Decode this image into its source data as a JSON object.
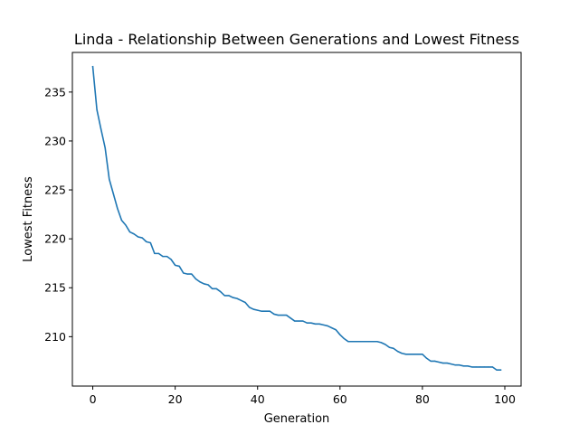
{
  "chart_data": {
    "type": "line",
    "title": "Linda - Relationship Between Generations and Lowest Fitness",
    "xlabel": "Generation",
    "ylabel": "Lowest Fitness",
    "xlim": [
      -4.95,
      103.95
    ],
    "ylim": [
      204.95,
      239.05
    ],
    "xticks": [
      0,
      20,
      40,
      60,
      80,
      100
    ],
    "yticks": [
      210,
      215,
      220,
      225,
      230,
      235
    ],
    "grid": false,
    "series": [
      {
        "color": "#1f77b4",
        "x": [
          0,
          1,
          2,
          3,
          4,
          5,
          6,
          7,
          8,
          9,
          10,
          11,
          12,
          13,
          14,
          15,
          16,
          17,
          18,
          19,
          20,
          21,
          22,
          23,
          24,
          25,
          26,
          27,
          28,
          29,
          30,
          31,
          32,
          33,
          34,
          35,
          36,
          37,
          38,
          39,
          40,
          41,
          42,
          43,
          44,
          45,
          46,
          47,
          48,
          49,
          50,
          51,
          52,
          53,
          54,
          55,
          56,
          57,
          58,
          59,
          60,
          61,
          62,
          63,
          64,
          65,
          66,
          67,
          68,
          69,
          70,
          71,
          72,
          73,
          74,
          75,
          76,
          77,
          78,
          79,
          80,
          81,
          82,
          83,
          84,
          85,
          86,
          87,
          88,
          89,
          90,
          91,
          92,
          93,
          94,
          95,
          96,
          97,
          98,
          99
        ],
        "values": [
          237.6,
          233.2,
          231.2,
          229.3,
          226.1,
          224.6,
          223.1,
          221.9,
          221.4,
          220.7,
          220.5,
          220.2,
          220.1,
          219.7,
          219.6,
          218.5,
          218.5,
          218.2,
          218.2,
          217.9,
          217.3,
          217.2,
          216.5,
          216.4,
          216.4,
          215.9,
          215.6,
          215.4,
          215.3,
          214.9,
          214.9,
          214.6,
          214.2,
          214.2,
          214.0,
          213.9,
          213.7,
          213.5,
          213.0,
          212.8,
          212.7,
          212.6,
          212.6,
          212.6,
          212.3,
          212.2,
          212.2,
          212.2,
          211.9,
          211.6,
          211.6,
          211.6,
          211.4,
          211.4,
          211.3,
          211.3,
          211.2,
          211.1,
          210.9,
          210.7,
          210.2,
          209.8,
          209.5,
          209.5,
          209.5,
          209.5,
          209.5,
          209.5,
          209.5,
          209.5,
          209.4,
          209.2,
          208.9,
          208.8,
          208.5,
          208.3,
          208.2,
          208.2,
          208.2,
          208.2,
          208.2,
          207.8,
          207.5,
          207.5,
          207.4,
          207.3,
          207.3,
          207.2,
          207.1,
          207.1,
          207.0,
          207.0,
          206.9,
          206.9,
          206.9,
          206.9,
          206.9,
          206.9,
          206.6,
          206.6
        ]
      }
    ]
  }
}
